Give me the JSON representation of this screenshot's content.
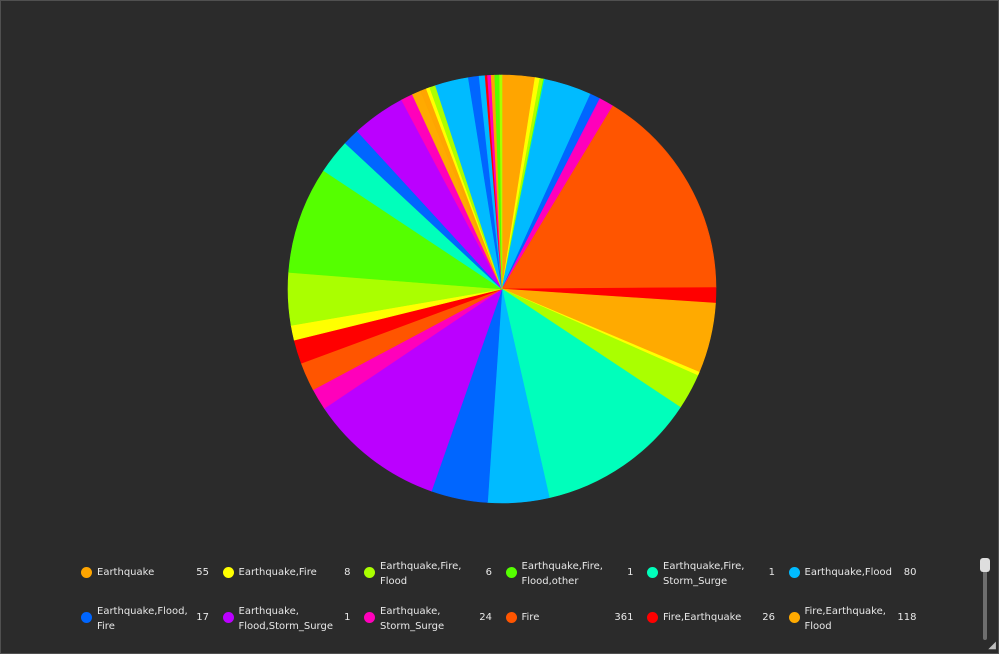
{
  "chart_data": {
    "type": "pie",
    "title": "",
    "legend_position": "bottom",
    "slices": [
      {
        "label": "Earthquake",
        "value": 55,
        "color": "#ffa500"
      },
      {
        "label": "Earthquake,Fire",
        "value": 8,
        "color": "#ffff00"
      },
      {
        "label": "Earthquake,Fire,\nFlood",
        "value": 6,
        "color": "#aaff00"
      },
      {
        "label": "Earthquake,Fire,\nFlood,other",
        "value": 1,
        "color": "#55ff00"
      },
      {
        "label": "Earthquake,Fire,\nStorm_Surge",
        "value": 1,
        "color": "#00ffbb"
      },
      {
        "label": "Earthquake,Flood",
        "value": 80,
        "color": "#00bbff"
      },
      {
        "label": "Earthquake,Flood,\nFire",
        "value": 17,
        "color": "#0066ff"
      },
      {
        "label": "Earthquake,\nFlood,Storm_Surge",
        "value": 1,
        "color": "#bb00ff"
      },
      {
        "label": "Earthquake,\nStorm_Surge",
        "value": 24,
        "color": "#ff00bb"
      },
      {
        "label": "Fire",
        "value": 361,
        "color": "#ff5500"
      },
      {
        "label": "Fire,Earthquake",
        "value": 26,
        "color": "#ff0000"
      },
      {
        "label": "Fire,Earthquake,\nFlood",
        "value": 118,
        "color": "#ffaa00"
      },
      {
        "label": "",
        "value": 6,
        "color": "#ffff00"
      },
      {
        "label": "",
        "value": 60,
        "color": "#aaff00"
      },
      {
        "label": "",
        "value": 270,
        "color": "#00ffbb"
      },
      {
        "label": "",
        "value": 103,
        "color": "#00bbff"
      },
      {
        "label": "",
        "value": 95,
        "color": "#0066ff"
      },
      {
        "label": "",
        "value": 228,
        "color": "#bb00ff"
      },
      {
        "label": "",
        "value": 36,
        "color": "#ff00bb"
      },
      {
        "label": "",
        "value": 48,
        "color": "#ff5500"
      },
      {
        "label": "",
        "value": 40,
        "color": "#ff0000"
      },
      {
        "label": "",
        "value": 25,
        "color": "#ffff00"
      },
      {
        "label": "",
        "value": 88,
        "color": "#aaff00"
      },
      {
        "label": "",
        "value": 180,
        "color": "#55ff00"
      },
      {
        "label": "",
        "value": 58,
        "color": "#00ffbb"
      },
      {
        "label": "",
        "value": 28,
        "color": "#0066ff"
      },
      {
        "label": "",
        "value": 90,
        "color": "#bb00ff"
      },
      {
        "label": "",
        "value": 20,
        "color": "#ff00bb"
      },
      {
        "label": "",
        "value": 15,
        "color": "#ffaa00"
      },
      {
        "label": "",
        "value": 10,
        "color": "#ffa500"
      },
      {
        "label": "",
        "value": 6,
        "color": "#ffff00"
      },
      {
        "label": "",
        "value": 10,
        "color": "#aaff00"
      },
      {
        "label": "",
        "value": 56,
        "color": "#00bbff"
      },
      {
        "label": "",
        "value": 18,
        "color": "#0066ff"
      },
      {
        "label": "",
        "value": 10,
        "color": "#00bbff"
      },
      {
        "label": "",
        "value": 4,
        "color": "#ff0000"
      },
      {
        "label": "",
        "value": 6,
        "color": "#ff00bb"
      },
      {
        "label": "",
        "value": 6,
        "color": "#ffa500"
      },
      {
        "label": "",
        "value": 8,
        "color": "#55ff00"
      },
      {
        "label": "",
        "value": 4,
        "color": "#aaff00"
      }
    ]
  }
}
